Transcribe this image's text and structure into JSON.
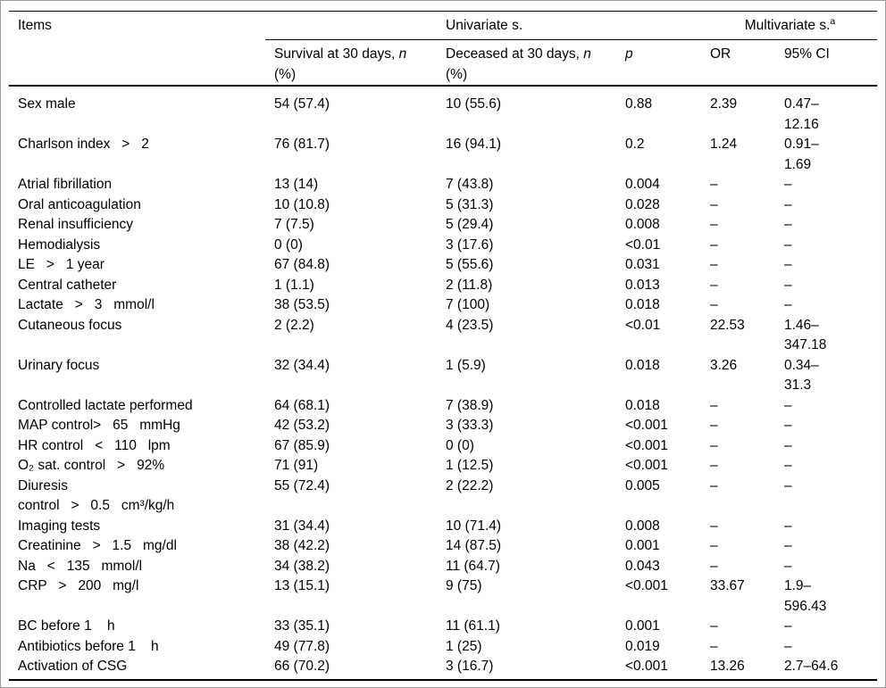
{
  "colors": {
    "background": "#ffffff",
    "text": "#000000",
    "rule": "#000000",
    "frame": "#9e9e9e"
  },
  "table": {
    "header": {
      "items": "Items",
      "group_univariate": "Univariate s.",
      "group_multivariate": {
        "text": "Multivariate s.",
        "sup": "a"
      },
      "col_survival": {
        "pre": "Survival at 30 days, ",
        "it": "n",
        "wrap": "(%)"
      },
      "col_deceased": {
        "pre": "Deceased at 30 days, ",
        "it": "n",
        "wrap": "(%)"
      },
      "col_p": {
        "it": "p"
      },
      "col_or": "OR",
      "col_ci": "95% CI"
    },
    "rows": [
      {
        "item": "Sex male",
        "survival": "54 (57.4)",
        "deceased": "10 (55.6)",
        "p": "0.88",
        "or": "2.39",
        "ci": [
          "0.47–",
          "12.16"
        ]
      },
      {
        "item": "Charlson index   >   2",
        "survival": "76 (81.7)",
        "deceased": "16 (94.1)",
        "p": "0.2",
        "or": "1.24",
        "ci": [
          "0.91–",
          "1.69"
        ]
      },
      {
        "item": "Atrial fibrillation",
        "survival": "13 (14)",
        "deceased": "7 (43.8)",
        "p": "0.004",
        "or": "–",
        "ci": "–"
      },
      {
        "item": "Oral anticoagulation",
        "survival": "10 (10.8)",
        "deceased": "5 (31.3)",
        "p": "0.028",
        "or": "–",
        "ci": "–"
      },
      {
        "item": "Renal insufficiency",
        "survival": "7 (7.5)",
        "deceased": "5 (29.4)",
        "p": "0.008",
        "or": "–",
        "ci": "–"
      },
      {
        "item": "Hemodialysis",
        "survival": "0 (0)",
        "deceased": "3 (17.6)",
        "p": "<0.01",
        "or": "–",
        "ci": "–"
      },
      {
        "item": "LE   >   1 year",
        "survival": "67 (84.8)",
        "deceased": "5 (55.6)",
        "p": "0.031",
        "or": "–",
        "ci": "–"
      },
      {
        "item": "Central catheter",
        "survival": "1 (1.1)",
        "deceased": "2 (11.8)",
        "p": "0.013",
        "or": "–",
        "ci": "–"
      },
      {
        "item": "Lactate   >   3   mmol/l",
        "survival": "38 (53.5)",
        "deceased": "7 (100)",
        "p": "0.018",
        "or": "–",
        "ci": "–"
      },
      {
        "item": "Cutaneous focus",
        "survival": "2 (2.2)",
        "deceased": "4 (23.5)",
        "p": "<0.01",
        "or": "22.53",
        "ci": [
          "1.46–",
          "347.18"
        ]
      },
      {
        "item": "Urinary focus",
        "survival": "32 (34.4)",
        "deceased": "1 (5.9)",
        "p": "0.018",
        "or": "3.26",
        "ci": [
          "0.34–",
          "31.3"
        ]
      },
      {
        "item": "Controlled lactate performed",
        "survival": "64 (68.1)",
        "deceased": "7 (38.9)",
        "p": "0.018",
        "or": "–",
        "ci": "–"
      },
      {
        "item": "MAP control>   65   mmHg",
        "survival": "42 (53.2)",
        "deceased": "3 (33.3)",
        "p": "<0.001",
        "or": "–",
        "ci": "–"
      },
      {
        "item": "HR control   <   110   lpm",
        "survival": "67 (85.9)",
        "deceased": "0 (0)",
        "p": "<0.001",
        "or": "–",
        "ci": "–"
      },
      {
        "item": "O₂ sat. control   >   92%",
        "survival": "71 (91)",
        "deceased": "1 (12.5)",
        "p": "<0.001",
        "or": "–",
        "ci": "–"
      },
      {
        "item": [
          "Diuresis",
          "control   >   0.5   cm³/kg/h"
        ],
        "survival": "55 (72.4)",
        "deceased": "2 (22.2)",
        "p": "0.005",
        "or": "–",
        "ci": "–"
      },
      {
        "item": "Imaging tests",
        "survival": "31 (34.4)",
        "deceased": "10 (71.4)",
        "p": "0.008",
        "or": "–",
        "ci": "–"
      },
      {
        "item": "Creatinine   >   1.5   mg/dl",
        "survival": "38 (42.2)",
        "deceased": "14 (87.5)",
        "p": "0.001",
        "or": "–",
        "ci": "–"
      },
      {
        "item": "Na   <   135   mmol/l",
        "survival": "34 (38.2)",
        "deceased": "11 (64.7)",
        "p": "0.043",
        "or": "–",
        "ci": "–"
      },
      {
        "item": "CRP   >   200   mg/l",
        "survival": "13 (15.1)",
        "deceased": "9 (75)",
        "p": "<0.001",
        "or": "33.67",
        "ci": [
          "1.9–",
          "596.43"
        ]
      },
      {
        "item": "BC before 1    h",
        "survival": "33 (35.1)",
        "deceased": "11 (61.1)",
        "p": "0.001",
        "or": "–",
        "ci": "–"
      },
      {
        "item": "Antibiotics before 1    h",
        "survival": "49 (77.8)",
        "deceased": "1 (25)",
        "p": "0.019",
        "or": "–",
        "ci": "–"
      },
      {
        "item": "Activation of CSG",
        "survival": "66 (70.2)",
        "deceased": "3 (16.7)",
        "p": "<0.001",
        "or": "13.26",
        "ci": "2.7–64.6"
      }
    ]
  }
}
